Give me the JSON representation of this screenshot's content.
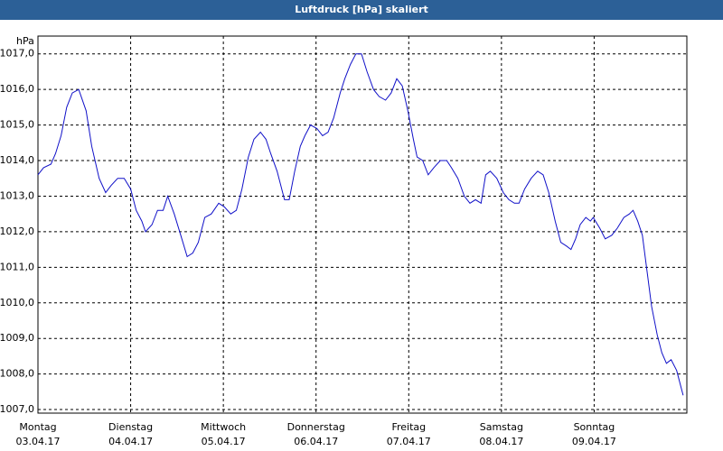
{
  "chart_data": {
    "type": "line",
    "title": "Luftdruck [hPa] skaliert",
    "y_unit": "hPa",
    "x": [
      0,
      0.06,
      0.14,
      0.19,
      0.25,
      0.31,
      0.37,
      0.44,
      0.52,
      0.58,
      0.66,
      0.73,
      0.79,
      0.86,
      0.93,
      1.0,
      1.06,
      1.12,
      1.16,
      1.23,
      1.29,
      1.35,
      1.4,
      1.47,
      1.54,
      1.61,
      1.67,
      1.73,
      1.8,
      1.87,
      1.95,
      2.01,
      2.08,
      2.14,
      2.2,
      2.27,
      2.33,
      2.4,
      2.46,
      2.51,
      2.58,
      2.66,
      2.71,
      2.77,
      2.83,
      2.88,
      2.94,
      3.01,
      3.07,
      3.13,
      3.19,
      3.26,
      3.31,
      3.37,
      3.43,
      3.49,
      3.55,
      3.62,
      3.68,
      3.75,
      3.81,
      3.87,
      3.93,
      3.99,
      4.05,
      4.09,
      4.15,
      4.21,
      4.27,
      4.34,
      4.41,
      4.46,
      4.53,
      4.6,
      4.66,
      4.72,
      4.78,
      4.83,
      4.88,
      4.95,
      5.02,
      5.08,
      5.14,
      5.19,
      5.25,
      5.32,
      5.39,
      5.45,
      5.51,
      5.58,
      5.64,
      5.7,
      5.75,
      5.8,
      5.85,
      5.91,
      5.96,
      5.99,
      6.06,
      6.12,
      6.19,
      6.25,
      6.32,
      6.38,
      6.42,
      6.47,
      6.52,
      6.57,
      6.62,
      6.68,
      6.73,
      6.78,
      6.83,
      6.89,
      6.96
    ],
    "series": [
      {
        "name": "Luftdruck",
        "color": "#1010c8",
        "values": [
          1013.6,
          1013.8,
          1013.9,
          1014.2,
          1014.7,
          1015.5,
          1015.9,
          1016.0,
          1015.4,
          1014.4,
          1013.5,
          1013.1,
          1013.3,
          1013.5,
          1013.5,
          1013.2,
          1012.6,
          1012.3,
          1012.0,
          1012.2,
          1012.6,
          1012.6,
          1013.0,
          1012.5,
          1011.9,
          1011.3,
          1011.4,
          1011.7,
          1012.4,
          1012.5,
          1012.8,
          1012.7,
          1012.5,
          1012.6,
          1013.2,
          1014.1,
          1014.6,
          1014.8,
          1014.6,
          1014.2,
          1013.7,
          1012.9,
          1012.9,
          1013.7,
          1014.4,
          1014.7,
          1015.0,
          1014.9,
          1014.7,
          1014.8,
          1015.2,
          1015.9,
          1016.3,
          1016.7,
          1017.0,
          1017.0,
          1016.5,
          1016.0,
          1015.8,
          1015.7,
          1015.9,
          1016.3,
          1016.1,
          1015.4,
          1014.6,
          1014.1,
          1014.0,
          1013.6,
          1013.8,
          1014.0,
          1014.0,
          1013.8,
          1013.5,
          1013.0,
          1012.8,
          1012.9,
          1012.8,
          1013.6,
          1013.7,
          1013.5,
          1013.1,
          1012.9,
          1012.8,
          1012.8,
          1013.2,
          1013.5,
          1013.7,
          1013.6,
          1013.1,
          1012.3,
          1011.7,
          1011.6,
          1011.5,
          1011.8,
          1012.2,
          1012.4,
          1012.3,
          1012.4,
          1012.1,
          1011.8,
          1011.9,
          1012.1,
          1012.4,
          1012.5,
          1012.6,
          1012.3,
          1011.9,
          1010.9,
          1009.9,
          1009.1,
          1008.6,
          1008.3,
          1008.4,
          1008.1,
          1007.4
        ]
      }
    ],
    "xlim": [
      0,
      7
    ],
    "xticks": [
      {
        "value": 0,
        "label": [
          "Montag",
          "03.04.17"
        ]
      },
      {
        "value": 1,
        "label": [
          "Dienstag",
          "04.04.17"
        ]
      },
      {
        "value": 2,
        "label": [
          "Mittwoch",
          "05.04.17"
        ]
      },
      {
        "value": 3,
        "label": [
          "Donnerstag",
          "06.04.17"
        ]
      },
      {
        "value": 4,
        "label": [
          "Freitag",
          "07.04.17"
        ]
      },
      {
        "value": 5,
        "label": [
          "Samstag",
          "08.04.17"
        ]
      },
      {
        "value": 6,
        "label": [
          "Sonntag",
          "09.04.17"
        ]
      }
    ],
    "ylim": [
      1006.9,
      1017.5
    ],
    "yticks": [
      {
        "value": 1007,
        "label": "1007,0"
      },
      {
        "value": 1008,
        "label": "1008,0"
      },
      {
        "value": 1009,
        "label": "1009,0"
      },
      {
        "value": 1010,
        "label": "1010,0"
      },
      {
        "value": 1011,
        "label": "1011,0"
      },
      {
        "value": 1012,
        "label": "1012,0"
      },
      {
        "value": 1013,
        "label": "1013,0"
      },
      {
        "value": 1014,
        "label": "1014,0"
      },
      {
        "value": 1015,
        "label": "1015,0"
      },
      {
        "value": 1016,
        "label": "1016,0"
      },
      {
        "value": 1017,
        "label": "1017,0"
      }
    ],
    "grid": true
  }
}
